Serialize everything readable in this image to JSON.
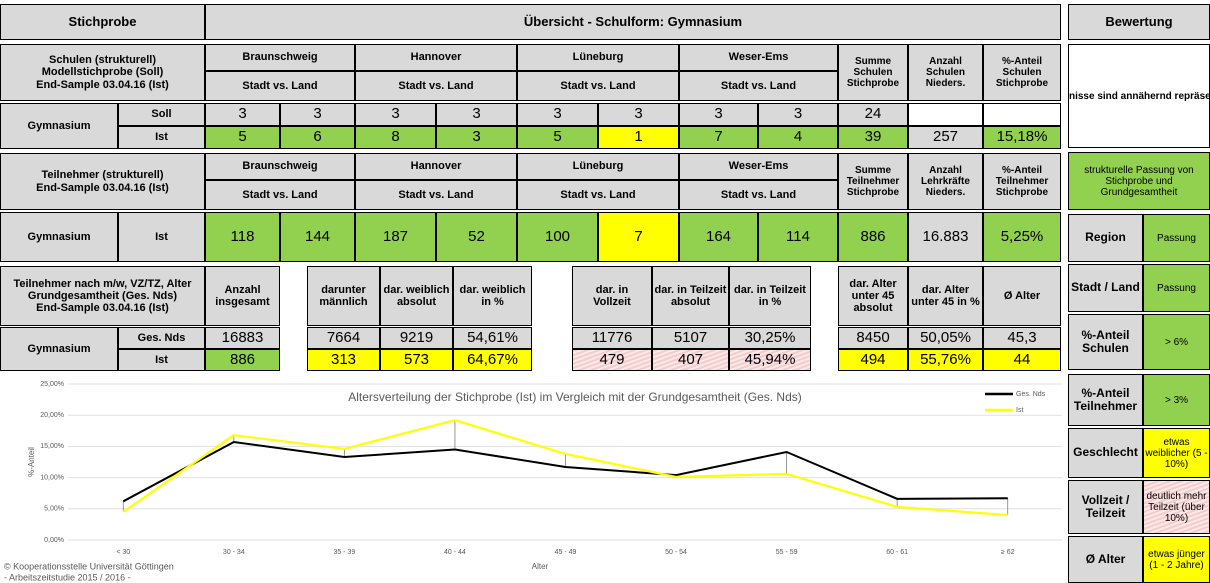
{
  "header": {
    "sample": "Stichprobe",
    "overview": "Übersicht - Schulform: Gymnasium",
    "rating": "Bewertung"
  },
  "schools": {
    "label": [
      "Schulen (strukturell)",
      "Modellstichprobe (Soll)",
      "End-Sample 03.04.16 (Ist)"
    ],
    "regions": [
      "Braunschweig",
      "Hannover",
      "Lüneburg",
      "Weser-Ems"
    ],
    "sub": "Stadt vs. Land",
    "summary_headers": [
      [
        "Summe",
        "Schulen",
        "Stichprobe"
      ],
      [
        "Anzahl",
        "Schulen",
        "Nieders."
      ],
      [
        "%-Anteil",
        "Schulen",
        "Stichprobe"
      ]
    ],
    "row_label": "Gymnasium",
    "rows": [
      {
        "label": "Soll",
        "values": [
          "3",
          "3",
          "3",
          "3",
          "3",
          "3",
          "3",
          "3",
          "24"
        ]
      },
      {
        "label": "Ist",
        "values": [
          "5",
          "6",
          "8",
          "3",
          "5",
          "1",
          "7",
          "4",
          "39",
          "257",
          "15,18%"
        ]
      }
    ]
  },
  "participants": {
    "label": [
      "Teilnehmer (strukturell)",
      "End-Sample 03.04.16 (Ist)"
    ],
    "regions": [
      "Braunschweig",
      "Hannover",
      "Lüneburg",
      "Weser-Ems"
    ],
    "sub": "Stadt vs. Land",
    "summary_headers": [
      [
        "Summe",
        "Teilnehmer",
        "Stichprobe"
      ],
      [
        "Anzahl",
        "Lehrkräfte",
        "Nieders."
      ],
      [
        "%-Anteil",
        "Teilnehmer",
        "Stichprobe"
      ]
    ],
    "row_label": "Gymnasium",
    "rows": [
      {
        "label": "Ist",
        "values": [
          "118",
          "144",
          "187",
          "52",
          "100",
          "7",
          "164",
          "114",
          "886",
          "16.883",
          "5,25%"
        ]
      }
    ]
  },
  "demographics": {
    "label": [
      "Teilnehmer nach m/w, VZ/TZ, Alter",
      "Grundgesamtheit (Ges. Nds)",
      "End-Sample 03.04.16 (Ist)"
    ],
    "headers": [
      [
        "Anzahl",
        "insgesamt"
      ],
      [
        "darunter",
        "männlich"
      ],
      [
        "dar. weiblich",
        "absolut"
      ],
      [
        "dar. weiblich",
        "in %"
      ],
      [
        "dar. in",
        "Vollzeit"
      ],
      [
        "dar. in Teilzeit",
        "absolut"
      ],
      [
        "dar. in Teilzeit",
        "in %"
      ],
      [
        "dar. Alter",
        "unter 45",
        "absolut"
      ],
      [
        "dar. Alter",
        "unter 45 in %"
      ],
      [
        "Ø Alter"
      ]
    ],
    "row_label": "Gymnasium",
    "rows": [
      {
        "label": "Ges. Nds",
        "values": [
          "16883",
          "7664",
          "9219",
          "54,61%",
          "11776",
          "5107",
          "30,25%",
          "8450",
          "50,05%",
          "45,3"
        ]
      },
      {
        "label": "Ist",
        "values": [
          "886",
          "313",
          "573",
          "64,67%",
          "479",
          "407",
          "45,94%",
          "494",
          "55,76%",
          "44"
        ]
      }
    ]
  },
  "rating": {
    "summary": "Ergebnisse sind annähernd repräsentativ",
    "fit": "strukturelle Passung von Stichprobe und Grundgesamtheit",
    "criteria": [
      {
        "label": "Region",
        "result": "Passung"
      },
      {
        "label": "Stadt / Land",
        "result": "Passung"
      },
      {
        "label": "%-Anteil Schulen",
        "result": "> 6%"
      },
      {
        "label": "%-Anteil Teilnehmer",
        "result": "> 3%"
      },
      {
        "label": "Geschlecht",
        "result": "etwas weiblicher (5 - 10%)"
      },
      {
        "label": "Vollzeit / Teilzeit",
        "result": "deutlich mehr Teilzeit (über 10%)"
      },
      {
        "label": "Ø Alter",
        "result": "etwas jünger (1 - 2 Jahre)"
      }
    ]
  },
  "chart_data": {
    "type": "line",
    "title": "Altersverteilung der Stichprobe (Ist) im Vergleich mit der Grundgesamtheit (Ges. Nds)",
    "x_label": "Alter",
    "y_label": "%-Anteil",
    "categories": [
      "< 30",
      "30 - 34",
      "35 - 39",
      "40 - 44",
      "45 - 49",
      "50 - 54",
      "55 - 59",
      "60 - 61",
      "≥ 62"
    ],
    "series": [
      {
        "name": "Ges. Nds",
        "color": "#000000",
        "values": [
          6.2,
          15.7,
          13.3,
          14.5,
          11.7,
          10.4,
          14.1,
          6.6,
          6.7
        ]
      },
      {
        "name": "Ist",
        "color": "#ffff00",
        "values": [
          4.5,
          16.8,
          14.6,
          19.2,
          13.8,
          10.1,
          10.6,
          5.3,
          4.0
        ]
      }
    ],
    "ylim": [
      0,
      25
    ],
    "yticks": [
      {
        "value": 0,
        "label": "0,00%"
      },
      {
        "value": 5,
        "label": "5,00%"
      },
      {
        "value": 10,
        "label": "10,00%"
      },
      {
        "value": 15,
        "label": "15,00%"
      },
      {
        "value": 20,
        "label": "20,00%"
      },
      {
        "value": 25,
        "label": "25,00%"
      }
    ],
    "grid": true,
    "legend": "upper right"
  },
  "footer": [
    "© Kooperationsstelle Universität Göttingen",
    "- Arbeitszeitstudie 2015 / 2016 -"
  ]
}
